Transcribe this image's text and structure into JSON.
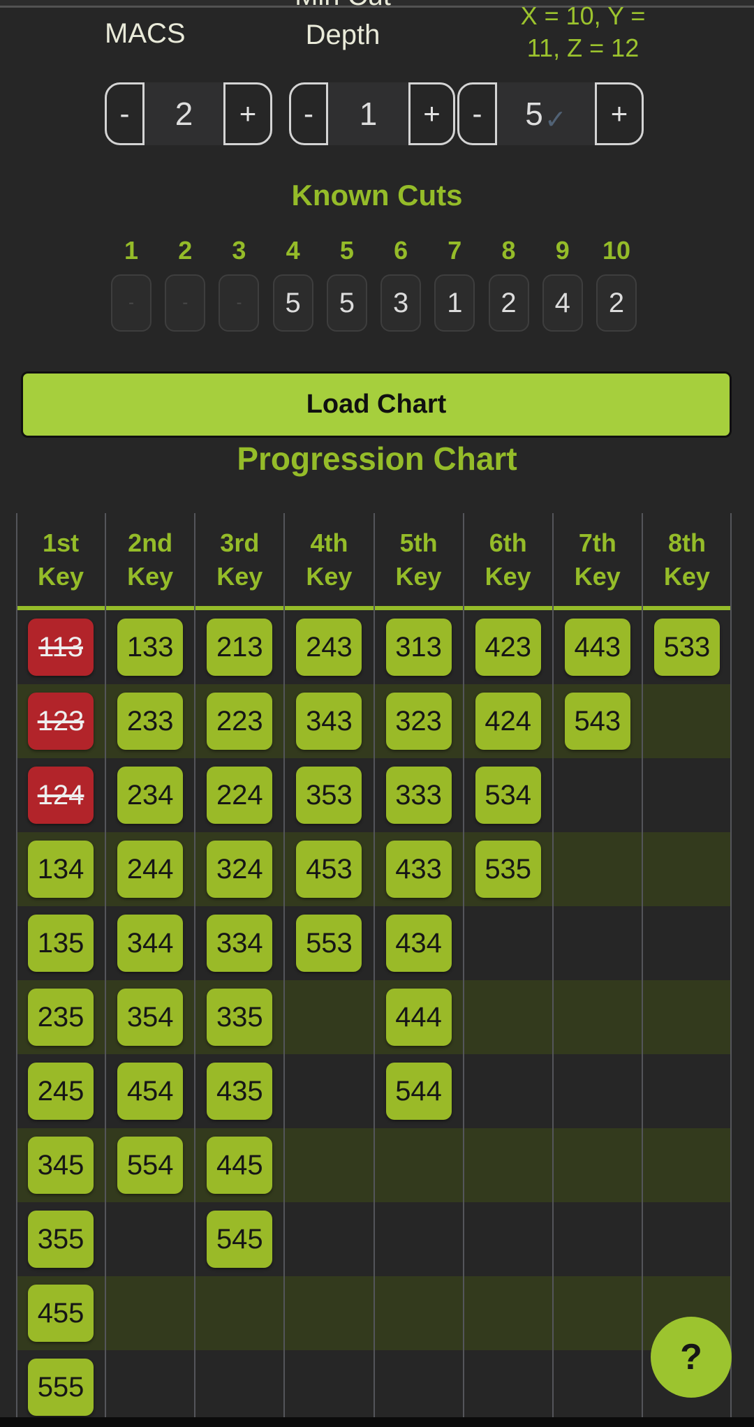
{
  "controls": {
    "macs": {
      "label": "MACS",
      "value": "2",
      "minus_label": "-",
      "plus_label": "+"
    },
    "min_cut_depth": {
      "label_line1": "Min Cut",
      "label_line2": "Depth",
      "value": "1",
      "minus_label": "-",
      "plus_label": "+"
    },
    "xyz": {
      "label_line1": "X = 10, Y =",
      "label_line2": "11, Z = 12",
      "value": "5",
      "minus_label": "-",
      "plus_label": "+",
      "check_icon": "✓"
    }
  },
  "known_cuts": {
    "title": "Known Cuts",
    "positions": [
      "1",
      "2",
      "3",
      "4",
      "5",
      "6",
      "7",
      "8",
      "9",
      "10"
    ],
    "values": [
      "",
      "",
      "",
      "5",
      "5",
      "3",
      "1",
      "2",
      "4",
      "2"
    ],
    "empty_placeholder": "-"
  },
  "load_chart_button": "Load Chart",
  "progression_chart": {
    "title": "Progression Chart",
    "column_headers": [
      "1st Key",
      "2nd Key",
      "3rd Key",
      "4th Key",
      "5th Key",
      "6th Key",
      "7th Key",
      "8th Key"
    ],
    "rows": [
      [
        "113",
        "133",
        "213",
        "243",
        "313",
        "423",
        "443",
        "533"
      ],
      [
        "123",
        "233",
        "223",
        "343",
        "323",
        "424",
        "543",
        ""
      ],
      [
        "124",
        "234",
        "224",
        "353",
        "333",
        "534",
        "",
        ""
      ],
      [
        "134",
        "244",
        "324",
        "453",
        "433",
        "535",
        "",
        ""
      ],
      [
        "135",
        "344",
        "334",
        "553",
        "434",
        "",
        "",
        ""
      ],
      [
        "235",
        "354",
        "335",
        "",
        "444",
        "",
        "",
        ""
      ],
      [
        "245",
        "454",
        "435",
        "",
        "544",
        "",
        "",
        ""
      ],
      [
        "345",
        "554",
        "445",
        "",
        "",
        "",
        "",
        ""
      ],
      [
        "355",
        "",
        "545",
        "",
        "",
        "",
        "",
        ""
      ],
      [
        "455",
        "",
        "",
        "",
        "",
        "",
        "",
        ""
      ],
      [
        "555",
        "",
        "",
        "",
        "",
        "",
        "",
        ""
      ]
    ],
    "eliminated_keys": [
      "113",
      "123",
      "124"
    ]
  },
  "help_button": "?",
  "colors": {
    "accent_green": "#95bc29",
    "key_green": "#9aba28",
    "eliminated_red": "#b2242a",
    "load_button_green": "#a6cf3d",
    "row_alt_olive": "#333a1d",
    "background": "#262626",
    "label_cream": "#e9ead9"
  }
}
